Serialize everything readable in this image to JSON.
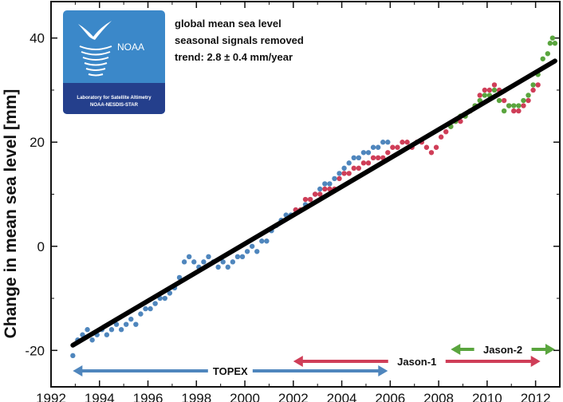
{
  "chart_data": {
    "type": "scatter",
    "title": "",
    "xlabel": "",
    "ylabel": "Change in mean sea level [mm]",
    "xlim": [
      1992,
      2013
    ],
    "ylim": [
      -27,
      47
    ],
    "xticks": [
      1992,
      1994,
      1996,
      1998,
      2000,
      2002,
      2004,
      2006,
      2008,
      2010,
      2012
    ],
    "xtick_labels": [
      "1992",
      "1994",
      "1996",
      "1998",
      "2000",
      "2002",
      "2004",
      "2006",
      "2008",
      "2010",
      "2012"
    ],
    "yticks": [
      -20,
      0,
      20,
      40
    ],
    "ytick_labels": [
      "-20",
      "0",
      "20",
      "40"
    ],
    "grid": false,
    "annotations": [
      "global mean sea level",
      "seasonal signals removed",
      "trend:  2.8 ± 0.4 mm/year"
    ],
    "trend": {
      "name": "trend",
      "x": [
        1992.9,
        2012.8
      ],
      "y": [
        -19.0,
        35.6
      ],
      "color": "#000000"
    },
    "series": [
      {
        "name": "TOPEX",
        "color": "#4f86bd",
        "points": [
          [
            1992.9,
            -21
          ],
          [
            1993.1,
            -18
          ],
          [
            1993.3,
            -17
          ],
          [
            1993.5,
            -16
          ],
          [
            1993.7,
            -18
          ],
          [
            1993.9,
            -17
          ],
          [
            1994.1,
            -16
          ],
          [
            1994.3,
            -17
          ],
          [
            1994.5,
            -16
          ],
          [
            1994.7,
            -15
          ],
          [
            1994.9,
            -16
          ],
          [
            1995.1,
            -15
          ],
          [
            1995.3,
            -14
          ],
          [
            1995.5,
            -15
          ],
          [
            1995.7,
            -13
          ],
          [
            1995.9,
            -12
          ],
          [
            1996.1,
            -12
          ],
          [
            1996.3,
            -11
          ],
          [
            1996.5,
            -10
          ],
          [
            1996.7,
            -10
          ],
          [
            1996.9,
            -9
          ],
          [
            1997.1,
            -8
          ],
          [
            1997.3,
            -6
          ],
          [
            1997.5,
            -3
          ],
          [
            1997.7,
            -2
          ],
          [
            1997.9,
            -3
          ],
          [
            1998.1,
            -4
          ],
          [
            1998.3,
            -3
          ],
          [
            1998.5,
            -2
          ],
          [
            1998.7,
            -3
          ],
          [
            1998.9,
            -4
          ],
          [
            1999.1,
            -3
          ],
          [
            1999.3,
            -4
          ],
          [
            1999.5,
            -3
          ],
          [
            1999.7,
            -2
          ],
          [
            1999.9,
            -2
          ],
          [
            2000.1,
            -1
          ],
          [
            2000.3,
            0
          ],
          [
            2000.5,
            -1
          ],
          [
            2000.7,
            1
          ],
          [
            2000.9,
            1
          ],
          [
            2001.1,
            3
          ],
          [
            2001.3,
            4
          ],
          [
            2001.5,
            5
          ],
          [
            2001.7,
            6
          ],
          [
            2001.9,
            6
          ],
          [
            2002.1,
            7
          ],
          [
            2002.3,
            7
          ],
          [
            2002.5,
            8
          ],
          [
            2002.7,
            9
          ],
          [
            2002.9,
            10
          ],
          [
            2003.1,
            11
          ],
          [
            2003.3,
            12
          ],
          [
            2003.5,
            12
          ],
          [
            2003.7,
            13
          ],
          [
            2003.9,
            14
          ],
          [
            2004.1,
            15
          ],
          [
            2004.3,
            16
          ],
          [
            2004.5,
            17
          ],
          [
            2004.7,
            17
          ],
          [
            2004.9,
            18
          ],
          [
            2005.1,
            18
          ],
          [
            2005.3,
            19
          ],
          [
            2005.5,
            19
          ],
          [
            2005.7,
            20
          ],
          [
            2005.9,
            20
          ]
        ]
      },
      {
        "name": "Jason-1",
        "color": "#cf3e58",
        "points": [
          [
            2002.1,
            7
          ],
          [
            2002.3,
            7
          ],
          [
            2002.5,
            9
          ],
          [
            2002.7,
            9
          ],
          [
            2002.9,
            10
          ],
          [
            2003.1,
            10
          ],
          [
            2003.3,
            11
          ],
          [
            2003.5,
            11
          ],
          [
            2003.7,
            11
          ],
          [
            2003.9,
            13
          ],
          [
            2004.1,
            14
          ],
          [
            2004.3,
            14
          ],
          [
            2004.5,
            15
          ],
          [
            2004.7,
            15
          ],
          [
            2004.9,
            16
          ],
          [
            2005.1,
            16
          ],
          [
            2005.3,
            17
          ],
          [
            2005.5,
            17
          ],
          [
            2005.7,
            17
          ],
          [
            2005.9,
            18
          ],
          [
            2006.1,
            19
          ],
          [
            2006.3,
            19
          ],
          [
            2006.5,
            20
          ],
          [
            2006.7,
            20
          ],
          [
            2006.9,
            19
          ],
          [
            2007.1,
            20
          ],
          [
            2007.3,
            20
          ],
          [
            2007.5,
            19
          ],
          [
            2007.7,
            18
          ],
          [
            2007.9,
            19
          ],
          [
            2008.1,
            21
          ],
          [
            2008.3,
            22
          ],
          [
            2008.5,
            23
          ],
          [
            2008.7,
            24
          ],
          [
            2008.9,
            24
          ],
          [
            2009.1,
            25
          ],
          [
            2009.3,
            26
          ],
          [
            2009.5,
            27
          ],
          [
            2009.7,
            29
          ],
          [
            2009.9,
            30
          ],
          [
            2010.1,
            30
          ],
          [
            2010.3,
            31
          ],
          [
            2010.5,
            30
          ],
          [
            2010.7,
            28
          ],
          [
            2010.9,
            27
          ],
          [
            2011.1,
            26
          ],
          [
            2011.3,
            26
          ],
          [
            2011.5,
            27
          ],
          [
            2011.7,
            28
          ],
          [
            2011.9,
            30
          ],
          [
            2012.1,
            31
          ]
        ]
      },
      {
        "name": "Jason-2",
        "color": "#5aa53e",
        "points": [
          [
            2008.5,
            23
          ],
          [
            2008.7,
            24
          ],
          [
            2008.9,
            25
          ],
          [
            2009.1,
            25
          ],
          [
            2009.3,
            26
          ],
          [
            2009.5,
            27
          ],
          [
            2009.7,
            28
          ],
          [
            2009.9,
            29
          ],
          [
            2010.1,
            29
          ],
          [
            2010.3,
            30
          ],
          [
            2010.5,
            28
          ],
          [
            2010.7,
            26
          ],
          [
            2010.9,
            27
          ],
          [
            2011.1,
            27
          ],
          [
            2011.3,
            27
          ],
          [
            2011.5,
            28
          ],
          [
            2011.7,
            29
          ],
          [
            2011.9,
            31
          ],
          [
            2012.1,
            33
          ],
          [
            2012.3,
            36
          ],
          [
            2012.5,
            37
          ],
          [
            2012.6,
            39
          ],
          [
            2012.7,
            40
          ],
          [
            2012.8,
            39
          ]
        ]
      }
    ],
    "missions": [
      {
        "name": "TOPEX",
        "x_start": 1992.9,
        "x_end": 2005.9,
        "color": "#4f86bd"
      },
      {
        "name": "Jason-1",
        "x_start": 2002.0,
        "x_end": 2012.2,
        "color": "#cf3e58"
      },
      {
        "name": "Jason-2",
        "x_start": 2008.5,
        "x_end": 2012.8,
        "color": "#5aa53e"
      }
    ]
  },
  "logo": {
    "agency": "NOAA",
    "lab_line1": "Laboratory for Satellite Altimetry",
    "lab_line2": "NOAA-NESDIS-STAR"
  },
  "colors": {
    "logo_top": "#3b88c9",
    "logo_bottom": "#243f8c"
  }
}
